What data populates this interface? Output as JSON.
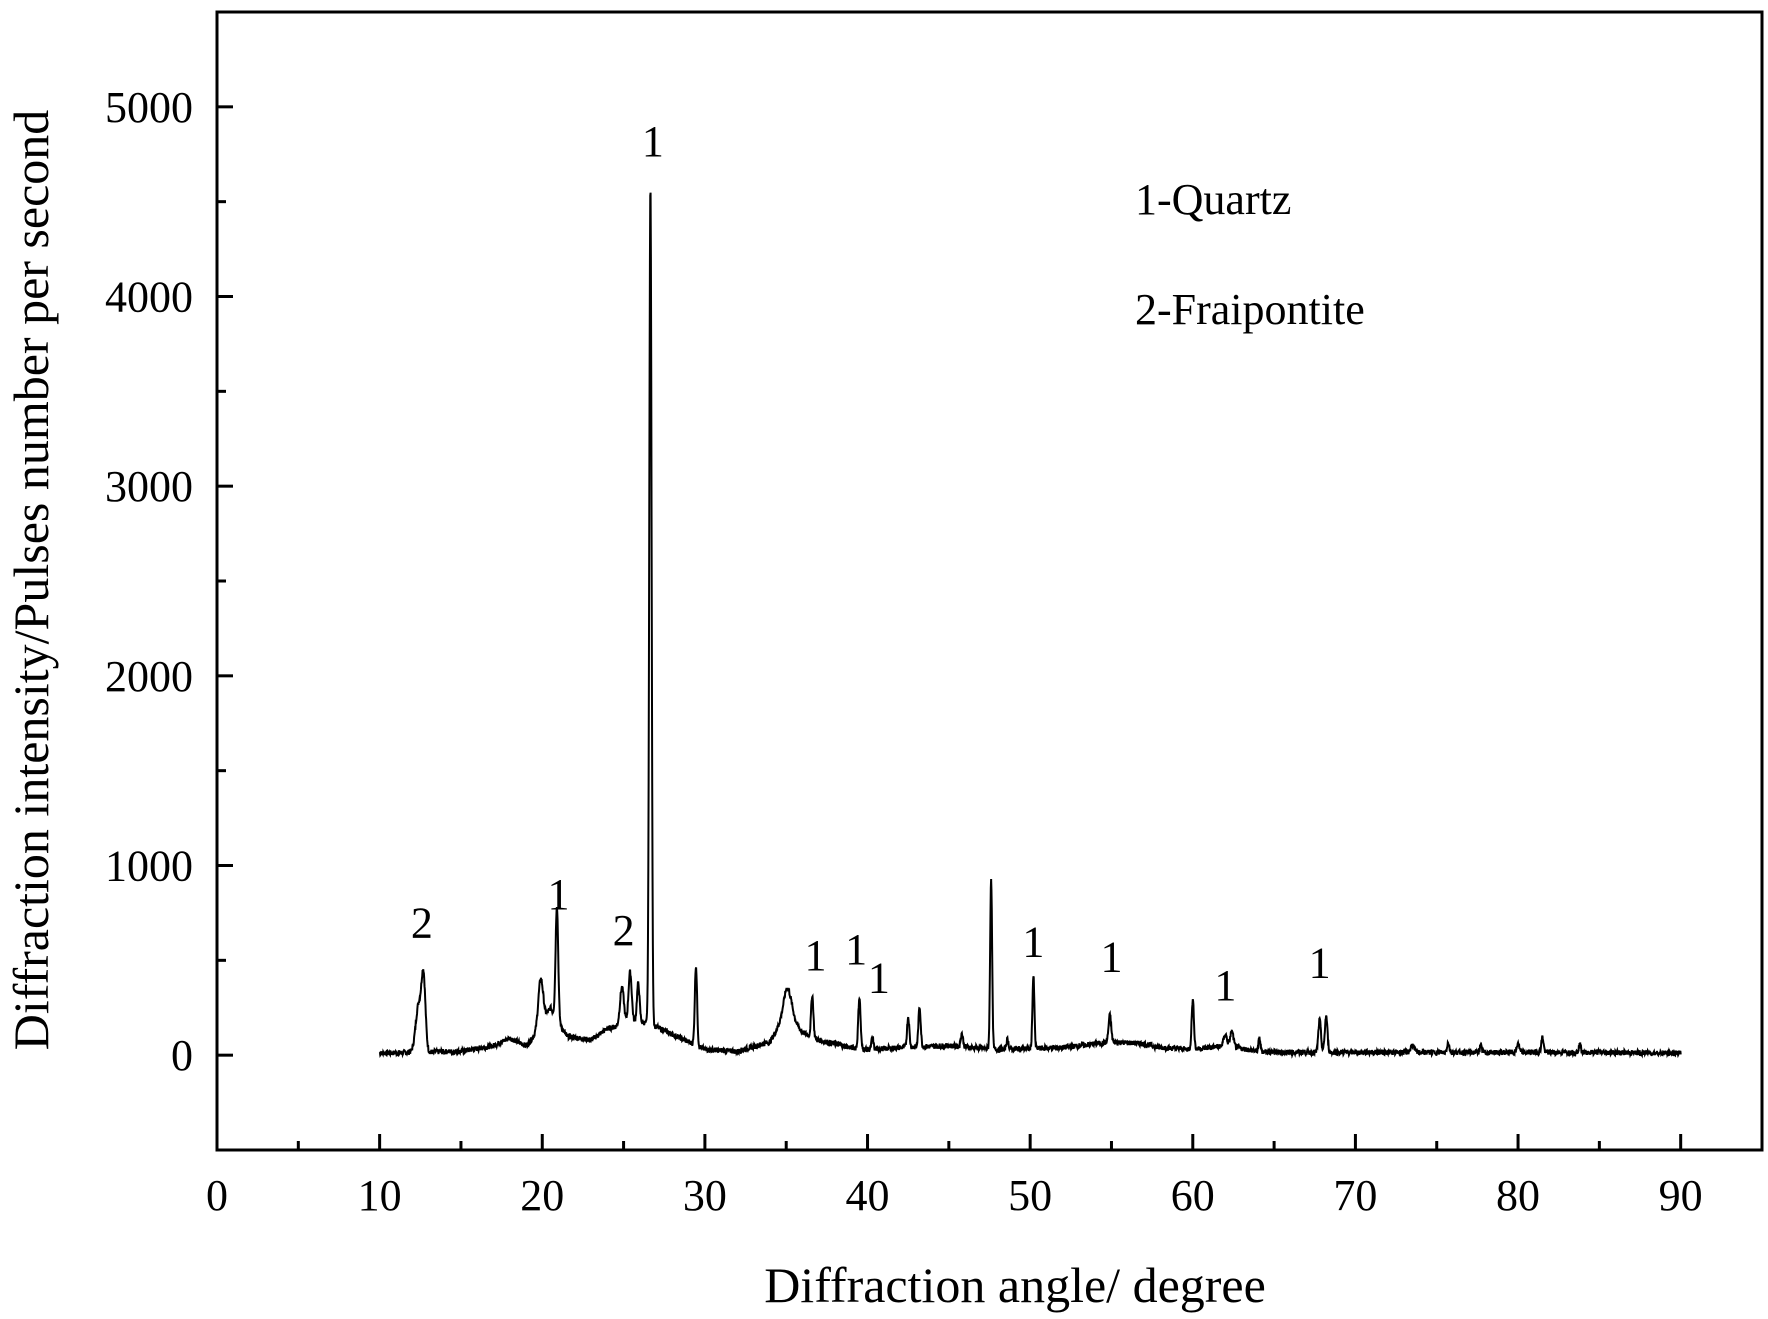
{
  "chart_data": {
    "type": "line",
    "title": "",
    "xlabel": "Diffraction angle/ degree",
    "ylabel": "Diffraction intensity/Pulses number per second",
    "xlim": [
      0,
      95
    ],
    "ylim": [
      -500,
      5500
    ],
    "xticks": [
      0,
      10,
      20,
      30,
      40,
      50,
      60,
      70,
      80,
      90
    ],
    "xtick_labels": [
      "0",
      "10",
      "20",
      "30",
      "40",
      "50",
      "60",
      "70",
      "80",
      "90"
    ],
    "yticks": [
      0,
      1000,
      2000,
      3000,
      4000,
      5000
    ],
    "ytick_labels": [
      "0",
      "1000",
      "2000",
      "3000",
      "4000",
      "5000"
    ],
    "grid": false,
    "series": [
      {
        "name": "",
        "x_range": [
          10,
          90
        ],
        "baseline": [
          [
            10,
            10
          ],
          [
            12,
            15
          ],
          [
            15,
            20
          ],
          [
            17,
            50
          ],
          [
            18,
            90
          ],
          [
            19,
            50
          ],
          [
            19.7,
            120
          ],
          [
            20.5,
            250
          ],
          [
            21.5,
            100
          ],
          [
            23,
            80
          ],
          [
            24,
            140
          ],
          [
            25,
            160
          ],
          [
            26,
            180
          ],
          [
            27,
            150
          ],
          [
            28,
            110
          ],
          [
            29,
            70
          ],
          [
            30,
            30
          ],
          [
            32,
            20
          ],
          [
            34,
            70
          ],
          [
            35,
            220
          ],
          [
            36,
            120
          ],
          [
            37,
            80
          ],
          [
            38,
            60
          ],
          [
            39,
            40
          ],
          [
            40,
            30
          ],
          [
            42,
            40
          ],
          [
            45,
            50
          ],
          [
            48,
            30
          ],
          [
            52,
            40
          ],
          [
            55,
            70
          ],
          [
            57,
            60
          ],
          [
            58,
            40
          ],
          [
            60,
            30
          ],
          [
            62,
            50
          ],
          [
            64,
            20
          ],
          [
            66,
            15
          ],
          [
            70,
            15
          ],
          [
            75,
            15
          ],
          [
            80,
            15
          ],
          [
            85,
            15
          ],
          [
            90,
            10
          ]
        ],
        "peaks": [
          [
            12.4,
            250,
            0.18
          ],
          [
            12.7,
            370,
            0.12
          ],
          [
            19.9,
            250,
            0.15
          ],
          [
            20.9,
            600,
            0.08
          ],
          [
            24.9,
            200,
            0.12
          ],
          [
            25.4,
            270,
            0.1
          ],
          [
            25.9,
            200,
            0.08
          ],
          [
            26.65,
            4430,
            0.07
          ],
          [
            29.45,
            420,
            0.07
          ],
          [
            35.1,
            140,
            0.25
          ],
          [
            36.6,
            220,
            0.07
          ],
          [
            39.5,
            270,
            0.07
          ],
          [
            40.3,
            60,
            0.06
          ],
          [
            42.5,
            160,
            0.07
          ],
          [
            43.2,
            210,
            0.07
          ],
          [
            45.8,
            70,
            0.07
          ],
          [
            47.6,
            900,
            0.06
          ],
          [
            48.6,
            50,
            0.07
          ],
          [
            50.2,
            380,
            0.06
          ],
          [
            54.9,
            140,
            0.08
          ],
          [
            60.0,
            260,
            0.07
          ],
          [
            62.0,
            60,
            0.1
          ],
          [
            62.4,
            80,
            0.1
          ],
          [
            64.1,
            70,
            0.06
          ],
          [
            67.8,
            170,
            0.08
          ],
          [
            68.2,
            190,
            0.08
          ],
          [
            73.5,
            40,
            0.1
          ],
          [
            75.7,
            50,
            0.07
          ],
          [
            77.7,
            30,
            0.07
          ],
          [
            80.0,
            50,
            0.07
          ],
          [
            81.5,
            80,
            0.07
          ],
          [
            83.8,
            40,
            0.07
          ]
        ]
      }
    ],
    "annotations": [
      {
        "text": "2",
        "x": 12.6,
        "y": 620
      },
      {
        "text": "1",
        "x": 21.0,
        "y": 770
      },
      {
        "text": "2",
        "x": 25.0,
        "y": 580
      },
      {
        "text": "1",
        "x": 26.8,
        "y": 4740
      },
      {
        "text": "1",
        "x": 36.8,
        "y": 450
      },
      {
        "text": "1",
        "x": 39.3,
        "y": 480
      },
      {
        "text": "1",
        "x": 40.7,
        "y": 330
      },
      {
        "text": "1",
        "x": 50.2,
        "y": 520
      },
      {
        "text": "1",
        "x": 55.0,
        "y": 440
      },
      {
        "text": "1",
        "x": 62.0,
        "y": 290
      },
      {
        "text": "1",
        "x": 67.8,
        "y": 410
      }
    ],
    "legend": {
      "placement": "top-right",
      "entries": [
        "1-Quartz",
        "2-Fraipontite"
      ]
    }
  }
}
